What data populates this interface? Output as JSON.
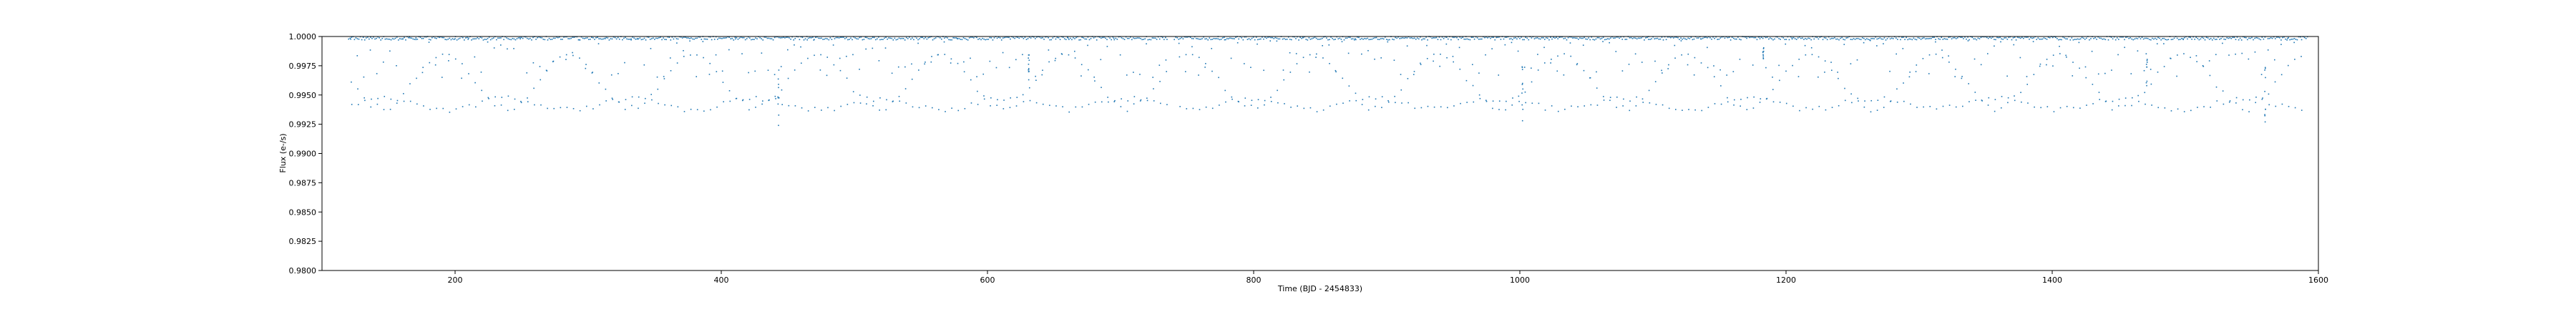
{
  "chart_data": {
    "type": "scatter",
    "title": "",
    "xlabel": "Time (BJD - 2454833)",
    "ylabel": "Flux (e-/s)",
    "xlim": [
      100,
      1600
    ],
    "ylim": [
      0.98,
      1.0
    ],
    "xticks": [
      200,
      400,
      600,
      800,
      1000,
      1200,
      1400,
      1600
    ],
    "yticks": [
      0.98,
      0.9825,
      0.985,
      0.9875,
      0.99,
      0.9925,
      0.995,
      0.9975,
      1.0
    ],
    "xtick_labels": [
      "200",
      "400",
      "600",
      "800",
      "1000",
      "1200",
      "1400",
      "1600"
    ],
    "ytick_labels": [
      "0.9800",
      "0.9825",
      "0.9850",
      "0.9875",
      "0.9900",
      "0.9925",
      "0.9950",
      "0.9975",
      "1.0000"
    ],
    "grid": false,
    "legend": "none",
    "series": [
      {
        "color": "#1f77b4",
        "marker": "point",
        "baseline_flux": 1.0,
        "data_segments": [
          [
            120,
            735
          ],
          [
            740,
            1560
          ],
          [
            1562,
            1592
          ]
        ],
        "transit_period_days": 4.9,
        "transit_depth_min_flux": 0.9935,
        "deep_events": [
          {
            "x": 443,
            "min_flux": 0.9924
          },
          {
            "x": 631,
            "min_flux": 0.9963
          },
          {
            "x": 1002,
            "min_flux": 0.9928
          },
          {
            "x": 1183,
            "min_flux": 0.9981
          },
          {
            "x": 1471,
            "min_flux": 0.9958
          },
          {
            "x": 1560,
            "min_flux": 0.9927
          }
        ]
      }
    ]
  }
}
